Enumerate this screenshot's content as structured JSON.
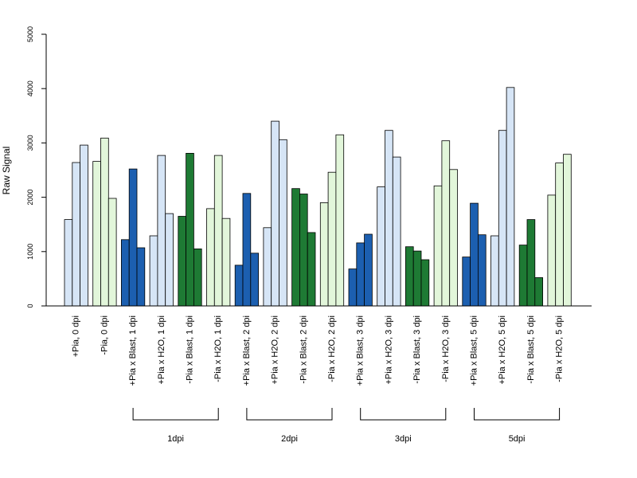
{
  "colors": {
    "light_blue": "#d6e5f6",
    "dark_blue": "#1c5fb0",
    "light_green": "#e2f6da",
    "dark_green": "#1e7a34"
  },
  "chart_data": {
    "type": "bar",
    "ylabel": "Raw Signal",
    "xlabel": "",
    "ylim": [
      0,
      5000
    ],
    "yticks": [
      "0",
      "1000",
      "2000",
      "3000",
      "4000",
      "5000"
    ],
    "bars_per_category": 3,
    "categories": [
      {
        "label": "+Pia, 0 dpi",
        "color": "light_blue",
        "values": [
          1590,
          2640,
          2960
        ]
      },
      {
        "label": "-Pia, 0 dpi",
        "color": "light_green",
        "values": [
          2660,
          3090,
          1980
        ]
      },
      {
        "label": "+Pia x Blast, 1 dpi",
        "color": "dark_blue",
        "values": [
          1220,
          2520,
          1070
        ]
      },
      {
        "label": "+Pia x H2O, 1 dpi",
        "color": "light_blue",
        "values": [
          1290,
          2770,
          1700
        ]
      },
      {
        "label": "-Pia x Blast, 1 dpi",
        "color": "dark_green",
        "values": [
          1650,
          2810,
          1050
        ]
      },
      {
        "label": "-Pia x H2O, 1 dpi",
        "color": "light_green",
        "values": [
          1790,
          2770,
          1610
        ]
      },
      {
        "label": "+Pia x Blast, 2 dpi",
        "color": "dark_blue",
        "values": [
          750,
          2070,
          970
        ]
      },
      {
        "label": "+Pia x H2O, 2 dpi",
        "color": "light_blue",
        "values": [
          1440,
          3400,
          3060
        ]
      },
      {
        "label": "-Pia x Blast, 2 dpi",
        "color": "dark_green",
        "values": [
          2160,
          2060,
          1350
        ]
      },
      {
        "label": "-Pia x H2O, 2 dpi",
        "color": "light_green",
        "values": [
          1900,
          2460,
          3150
        ]
      },
      {
        "label": "+Pia x Blast, 3 dpi",
        "color": "dark_blue",
        "values": [
          680,
          1160,
          1320
        ]
      },
      {
        "label": "+Pia x H2O, 3 dpi",
        "color": "light_blue",
        "values": [
          2190,
          3230,
          2740
        ]
      },
      {
        "label": "-Pia x Blast, 3 dpi",
        "color": "dark_green",
        "values": [
          1090,
          1010,
          850
        ]
      },
      {
        "label": "-Pia x H2O, 3 dpi",
        "color": "light_green",
        "values": [
          2210,
          3040,
          2510
        ]
      },
      {
        "label": "+Pia x Blast, 5 dpi",
        "color": "dark_blue",
        "values": [
          900,
          1890,
          1310
        ]
      },
      {
        "label": "+Pia x H2O, 5 dpi",
        "color": "light_blue",
        "values": [
          1290,
          3230,
          4020
        ]
      },
      {
        "label": "-Pia x Blast, 5 dpi",
        "color": "dark_green",
        "values": [
          1120,
          1590,
          520
        ]
      },
      {
        "label": "-Pia x H2O, 5 dpi",
        "color": "light_green",
        "values": [
          2040,
          2630,
          2790
        ]
      }
    ],
    "groups": [
      {
        "label": "1dpi",
        "from_category": 2,
        "to_category": 5
      },
      {
        "label": "2dpi",
        "from_category": 6,
        "to_category": 9
      },
      {
        "label": "3dpi",
        "from_category": 10,
        "to_category": 13
      },
      {
        "label": "5dpi",
        "from_category": 14,
        "to_category": 17
      }
    ],
    "grid": false,
    "legend": "none"
  }
}
